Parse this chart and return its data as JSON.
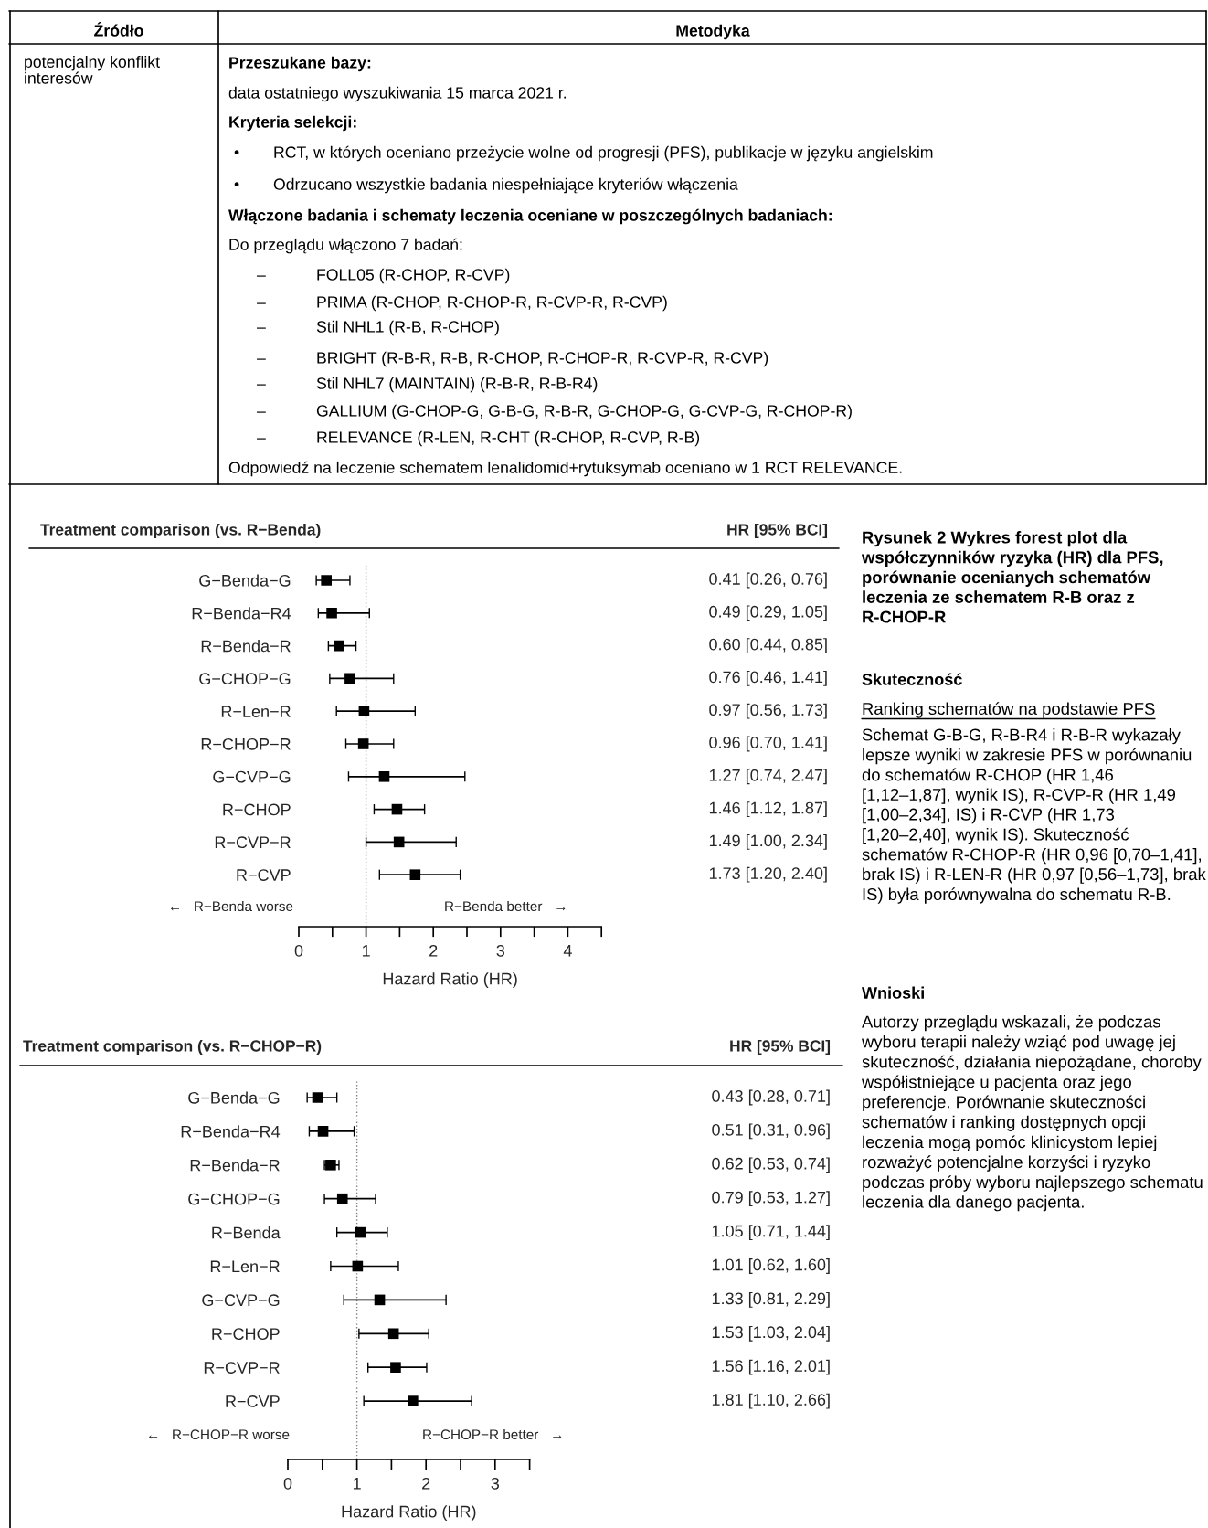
{
  "chart_data": [
    {
      "type": "other",
      "annotations": [
        "Źródło",
        "Metodyka",
        "potencjalny konflikt\ninteresów",
        "Przeszukane bazy:",
        "data ostatniego wyszukiwania 15 marca 2021 r.",
        "Kryteria selekcji:",
        "•",
        "RCT, w których oceniano przeżycie wolne od progresji (PFS), publikacje w języku angielskim",
        "•",
        "Odrzucano wszystkie badania niespełniające kryteriów włączenia",
        "Włączone badania i schematy leczenia oceniane w poszczególnych badaniach:",
        "Do przeglądu włączono 7 badań:",
        "–",
        "FOLL05 (R-CHOP, R-CVP)",
        "–",
        "PRIMA (R-CHOP, R-CHOP-R, R-CVP-R, R-CVP)",
        "–",
        "Stil NHL1 (R-B, R-CHOP)",
        "–",
        "BRIGHT (R-B-R, R-B, R-CHOP, R-CHOP-R, R-CVP-R, R-CVP)",
        "–",
        "Stil NHL7 (MAINTAIN) (R-B-R, R-B-R4)",
        "–",
        "GALLIUM (G-CHOP-G, G-B-G, R-B-R, G-CHOP-G, G-CVP-G, R-CHOP-R)",
        "–",
        "RELEVANCE (R-LEN, R-CHT (R-CHOP, R-CVP, R-B)",
        "Odpowiedź na leczenie schematem lenalidomid+rytuksymab oceniano w 1 RCT RELEVANCE.",
        "Rysunek 2 Wykres forest plot dla współczynników ryzyka (HR) dla PFS, porównanie ocenianych schematów leczenia ze schematem R-B oraz z R-CHOP-R",
        "Skuteczność",
        "Ranking schematów na podstawie PFS",
        "Schemat G-B-G, R-B-R4 i R-B-R wykazały lepsze wyniki w zakresie PFS w porównaniu do schematów R-CHOP (HR 1,46 [1,12–1,87], wynik IS), R-CVP-R (HR 1,49 [1,00–2,34], IS) i R-CVP (HR 1,73 [1,20–2,40], wynik IS). Skuteczność schematów R-CHOP-R (HR 0,96 [0,70–1,41], brak IS) i R-LEN-R (HR 0,97 [0,56–1,73], brak IS) była porównywalna do schematu R-B.",
        "Wnioski",
        "Autorzy przeglądu wskazali, że podczas wyboru terapii należy wziąć pod uwagę jej skuteczność, działania niepożądane, choroby współistniejące u pacjenta oraz jego preferencje. Porównanie skuteczności schematów i ranking dostępnych opcji leczenia mogą pomóc klinicystom lepiej rozważyć potencjalne korzyści i ryzyko podczas próby wyboru najlepszego schematu leczenia dla danego pacjenta."
      ]
    },
    {
      "type": "scatter",
      "orientation": "horizontal",
      "title": "Treatment comparison (vs. R−Benda)",
      "xlabel": "Hazard Ratio (HR)",
      "marker": "square",
      "color": "#000000",
      "categories": [
        "G−Benda−G",
        "R−Benda−R4",
        "R−Benda−R",
        "G−CHOP−G",
        "R−Len−R",
        "R−CHOP−R",
        "G−CVP−G",
        "R−CHOP",
        "R−CVP−R",
        "R−CVP"
      ],
      "values": [
        0.41,
        0.49,
        0.6,
        0.76,
        0.97,
        0.96,
        1.27,
        1.46,
        1.49,
        1.73
      ],
      "errors": [
        [
          0.26,
          0.76
        ],
        [
          0.29,
          1.05
        ],
        [
          0.44,
          0.85
        ],
        [
          0.46,
          1.41
        ],
        [
          0.56,
          1.73
        ],
        [
          0.7,
          1.41
        ],
        [
          0.74,
          2.47
        ],
        [
          1.12,
          1.87
        ],
        [
          1.0,
          2.34
        ],
        [
          1.2,
          2.4
        ]
      ],
      "value_labels": [
        "0.41 [0.26, 0.76]",
        "0.49 [0.29, 1.05]",
        "0.60 [0.44, 0.85]",
        "0.76 [0.46, 1.41]",
        "0.97 [0.56, 1.73]",
        "0.96 [0.70, 1.41]",
        "1.27 [0.74, 2.47]",
        "1.46 [1.12, 1.87]",
        "1.49 [1.00, 2.34]",
        "1.73 [1.20, 2.40]"
      ],
      "xlim": [
        0,
        4.5
      ],
      "xticks": [
        0,
        {
          "value": 0.5,
          "label": null
        },
        1,
        {
          "value": 1.5,
          "label": null
        },
        2,
        {
          "value": 2.5,
          "label": null
        },
        3,
        {
          "value": 3.5,
          "label": null
        },
        4,
        {
          "value": 4.5,
          "label": null
        }
      ],
      "ref_lines": [
        {
          "axis": "x",
          "value": 1,
          "line_style": "dotted",
          "color": "#808080"
        }
      ],
      "annotations": [
        "HR [95% BCI]",
        "←   R−Benda worse",
        "R−Benda better   →"
      ]
    },
    {
      "type": "scatter",
      "orientation": "horizontal",
      "title": "Treatment comparison (vs. R−CHOP−R)",
      "xlabel": "Hazard Ratio (HR)",
      "marker": "square",
      "color": "#000000",
      "categories": [
        "G−Benda−G",
        "R−Benda−R4",
        "R−Benda−R",
        "G−CHOP−G",
        "R−Benda",
        "R−Len−R",
        "G−CVP−G",
        "R−CHOP",
        "R−CVP−R",
        "R−CVP"
      ],
      "values": [
        0.43,
        0.51,
        0.62,
        0.79,
        1.05,
        1.01,
        1.33,
        1.53,
        1.56,
        1.81
      ],
      "errors": [
        [
          0.28,
          0.71
        ],
        [
          0.31,
          0.96
        ],
        [
          0.53,
          0.74
        ],
        [
          0.53,
          1.27
        ],
        [
          0.71,
          1.44
        ],
        [
          0.62,
          1.6
        ],
        [
          0.81,
          2.29
        ],
        [
          1.03,
          2.04
        ],
        [
          1.16,
          2.01
        ],
        [
          1.1,
          2.66
        ]
      ],
      "value_labels": [
        "0.43 [0.28, 0.71]",
        "0.51 [0.31, 0.96]",
        "0.62 [0.53, 0.74]",
        "0.79 [0.53, 1.27]",
        "1.05 [0.71, 1.44]",
        "1.01 [0.62, 1.60]",
        "1.33 [0.81, 2.29]",
        "1.53 [1.03, 2.04]",
        "1.56 [1.16, 2.01]",
        "1.81 [1.10, 2.66]"
      ],
      "xlim": [
        0,
        3.5
      ],
      "xticks": [
        0,
        {
          "value": 0.5,
          "label": null
        },
        1,
        {
          "value": 1.5,
          "label": null
        },
        2,
        {
          "value": 2.5,
          "label": null
        },
        3,
        {
          "value": 3.5,
          "label": null
        }
      ],
      "ref_lines": [
        {
          "axis": "x",
          "value": 1,
          "line_style": "dotted",
          "color": "#808080"
        }
      ],
      "annotations": [
        "HR [95% BCI]",
        "←   R−CHOP−R worse",
        "R−CHOP−R better   →"
      ]
    }
  ]
}
